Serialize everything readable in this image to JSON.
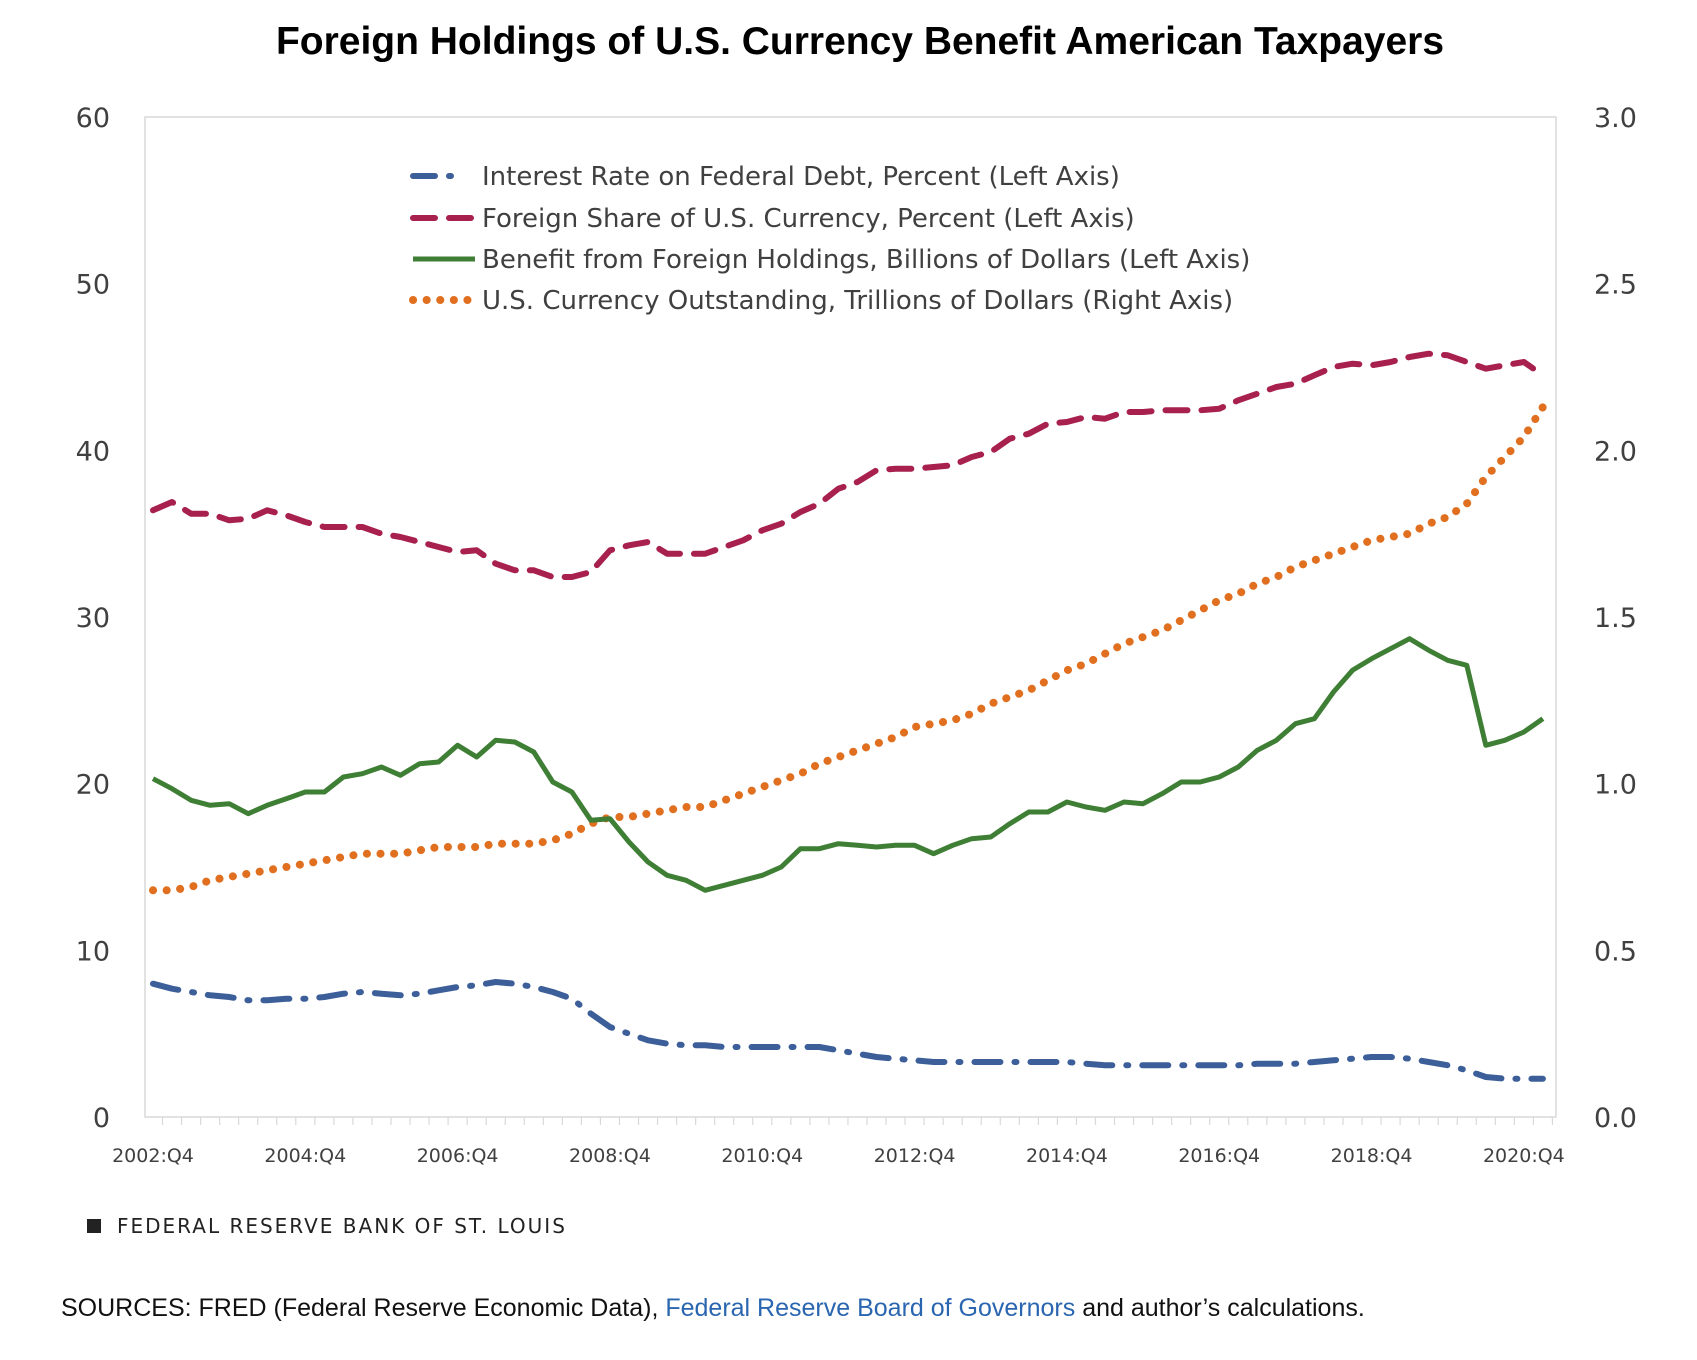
{
  "chart_data": {
    "type": "line",
    "title": "Foreign Holdings of U.S. Currency Benefit American Taxpayers",
    "xlabel": "",
    "ylabel_left": "",
    "ylabel_right": "",
    "ylim_left": [
      0,
      60
    ],
    "ylim_right": [
      0,
      3.0
    ],
    "yticks_left": [
      "0",
      "10",
      "20",
      "30",
      "40",
      "50",
      "60"
    ],
    "yticks_right": [
      "0.0",
      "0.5",
      "1.0",
      "1.5",
      "2.0",
      "2.5",
      "3.0"
    ],
    "x_start": "2002:Q4",
    "x_end": "2021:Q1",
    "n_points": 74,
    "xtick_labels": [
      "2002:Q4",
      "2004:Q4",
      "2006:Q4",
      "2008:Q4",
      "2010:Q4",
      "2012:Q4",
      "2014:Q4",
      "2016:Q4",
      "2018:Q4",
      "2020:Q4"
    ],
    "grid": false,
    "legend_position": "top-center",
    "series": [
      {
        "name": "Interest Rate on Federal Debt, Percent (Left Axis)",
        "axis": "left",
        "color": "#3d5f99",
        "style": "dash-dot",
        "values": [
          8.0,
          7.7,
          7.5,
          7.3,
          7.2,
          7.0,
          7.0,
          7.1,
          7.1,
          7.2,
          7.4,
          7.5,
          7.4,
          7.3,
          7.4,
          7.6,
          7.8,
          7.9,
          8.1,
          8.0,
          7.8,
          7.5,
          7.1,
          6.2,
          5.4,
          5.0,
          4.6,
          4.4,
          4.3,
          4.3,
          4.2,
          4.2,
          4.2,
          4.2,
          4.2,
          4.2,
          4.0,
          3.8,
          3.6,
          3.5,
          3.4,
          3.3,
          3.3,
          3.3,
          3.3,
          3.3,
          3.3,
          3.3,
          3.3,
          3.2,
          3.1,
          3.1,
          3.1,
          3.1,
          3.1,
          3.1,
          3.1,
          3.1,
          3.2,
          3.2,
          3.2,
          3.3,
          3.4,
          3.5,
          3.6,
          3.6,
          3.5,
          3.3,
          3.1,
          2.8,
          2.4,
          2.3,
          2.3,
          2.3
        ]
      },
      {
        "name": "Foreign Share of U.S. Currency, Percent (Left Axis)",
        "axis": "left",
        "color": "#a8204e",
        "style": "dash",
        "values": [
          36.4,
          36.9,
          36.2,
          36.2,
          35.8,
          35.9,
          36.4,
          36.1,
          35.7,
          35.4,
          35.4,
          35.4,
          35.0,
          34.8,
          34.5,
          34.2,
          33.9,
          34.0,
          33.2,
          32.8,
          32.8,
          32.4,
          32.4,
          32.7,
          34.0,
          34.3,
          34.5,
          33.8,
          33.8,
          33.8,
          34.2,
          34.6,
          35.2,
          35.6,
          36.3,
          36.8,
          37.7,
          38.1,
          38.8,
          38.9,
          38.9,
          39.0,
          39.1,
          39.6,
          39.9,
          40.7,
          41.0,
          41.6,
          41.7,
          42.0,
          41.9,
          42.3,
          42.3,
          42.4,
          42.4,
          42.4,
          42.5,
          43.0,
          43.4,
          43.8,
          44.0,
          44.5,
          45.0,
          45.2,
          45.1,
          45.3,
          45.6,
          45.8,
          45.7,
          45.3,
          44.9,
          45.1,
          45.3,
          44.5
        ]
      },
      {
        "name": "Benefit from Foreign Holdings, Billions of Dollars (Left Axis)",
        "axis": "left",
        "color": "#3f7f35",
        "style": "solid",
        "values": [
          20.3,
          19.7,
          19.0,
          18.7,
          18.8,
          18.2,
          18.7,
          19.1,
          19.5,
          19.5,
          20.4,
          20.6,
          21.0,
          20.5,
          21.2,
          21.3,
          22.3,
          21.6,
          22.6,
          22.5,
          21.9,
          20.1,
          19.5,
          17.8,
          17.9,
          16.5,
          15.3,
          14.5,
          14.2,
          13.6,
          13.9,
          14.2,
          14.5,
          15.0,
          16.1,
          16.1,
          16.4,
          16.3,
          16.2,
          16.3,
          16.3,
          15.8,
          16.3,
          16.7,
          16.8,
          17.6,
          18.3,
          18.3,
          18.9,
          18.6,
          18.4,
          18.9,
          18.8,
          19.4,
          20.1,
          20.1,
          20.4,
          21.0,
          22.0,
          22.6,
          23.6,
          23.9,
          25.5,
          26.8,
          27.5,
          28.1,
          28.7,
          28.0,
          27.4,
          27.1,
          22.3,
          22.6,
          23.1,
          23.9
        ]
      },
      {
        "name": "U.S. Currency Outstanding, Trillions of Dollars (Right Axis)",
        "axis": "right",
        "color": "#e07020",
        "style": "dotted",
        "values": [
          0.68,
          0.68,
          0.69,
          0.71,
          0.72,
          0.73,
          0.74,
          0.75,
          0.76,
          0.77,
          0.78,
          0.79,
          0.79,
          0.79,
          0.8,
          0.81,
          0.81,
          0.81,
          0.82,
          0.82,
          0.82,
          0.83,
          0.85,
          0.88,
          0.9,
          0.9,
          0.91,
          0.92,
          0.93,
          0.93,
          0.95,
          0.97,
          0.99,
          1.01,
          1.03,
          1.06,
          1.08,
          1.1,
          1.12,
          1.14,
          1.17,
          1.18,
          1.19,
          1.21,
          1.24,
          1.26,
          1.28,
          1.31,
          1.34,
          1.36,
          1.39,
          1.42,
          1.44,
          1.46,
          1.49,
          1.52,
          1.55,
          1.57,
          1.6,
          1.62,
          1.65,
          1.67,
          1.69,
          1.71,
          1.73,
          1.74,
          1.75,
          1.78,
          1.8,
          1.84,
          1.92,
          1.98,
          2.04,
          2.13
        ]
      }
    ]
  },
  "footer": {
    "brand": "FEDERAL RESERVE BANK OF ST. LOUIS",
    "sources_prefix": "SOURCES: FRED (Federal Reserve Economic Data), ",
    "sources_link": "Federal Reserve Board of Governors",
    "sources_suffix": " and author’s calculations."
  }
}
